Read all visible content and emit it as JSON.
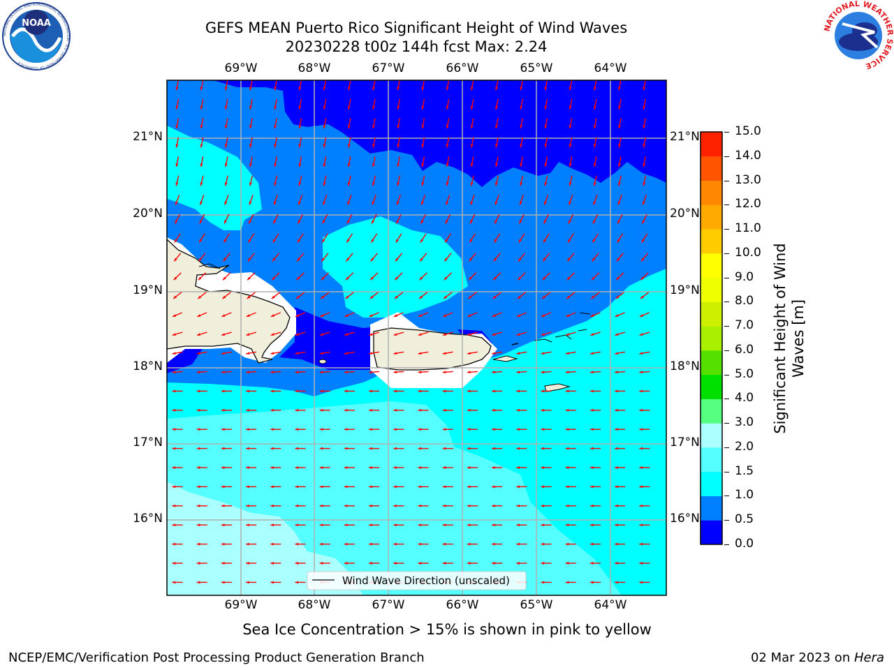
{
  "title": {
    "line1": "GEFS MEAN Puerto Rico Significant Height of Wind Waves",
    "line2": "20230228 t00z 144h fcst   Max: 2.24"
  },
  "logos": {
    "left_name": "NOAA",
    "left_ring": "NATIONAL OCEANIC AND ATMOSPHERIC ADMINISTRATION · U.S. DEPARTMENT OF COMMERCE",
    "right_ring": "NATIONAL WEATHER SERVICE"
  },
  "map": {
    "lon_labels": [
      "69°W",
      "68°W",
      "67°W",
      "66°W",
      "65°W",
      "64°W"
    ],
    "lat_labels": [
      "21°N",
      "20°N",
      "19°N",
      "18°N",
      "17°N",
      "16°N"
    ],
    "legend_label": "Wind Wave Direction (unscaled)",
    "arrow_color": "#ff0000"
  },
  "colorbar": {
    "label": "Significant Height of Wind Waves [m]",
    "ticks": [
      "15.0",
      "14.0",
      "13.0",
      "12.0",
      "11.0",
      "10.0",
      "9.0",
      "8.0",
      "7.0",
      "6.0",
      "5.0",
      "4.0",
      "3.0",
      "2.0",
      "1.5",
      "1.0",
      "0.5",
      "0.0"
    ],
    "colors": [
      "#0000ff",
      "#0080ff",
      "#00ffff",
      "#55ffff",
      "#aaffff",
      "#55ff80",
      "#00e000",
      "#55e000",
      "#aaee00",
      "#ccf000",
      "#eeff00",
      "#ffff00",
      "#ffcc00",
      "#ffaa00",
      "#ff8800",
      "#ff5500",
      "#ff2200"
    ]
  },
  "note": "Sea Ice Concentration > 15% is shown in pink to yellow",
  "footer": {
    "left": "NCEP/EMC/Verification Post Processing Product Generation Branch",
    "right_prefix": "02 Mar 2023 on ",
    "right_host": "Hera"
  }
}
